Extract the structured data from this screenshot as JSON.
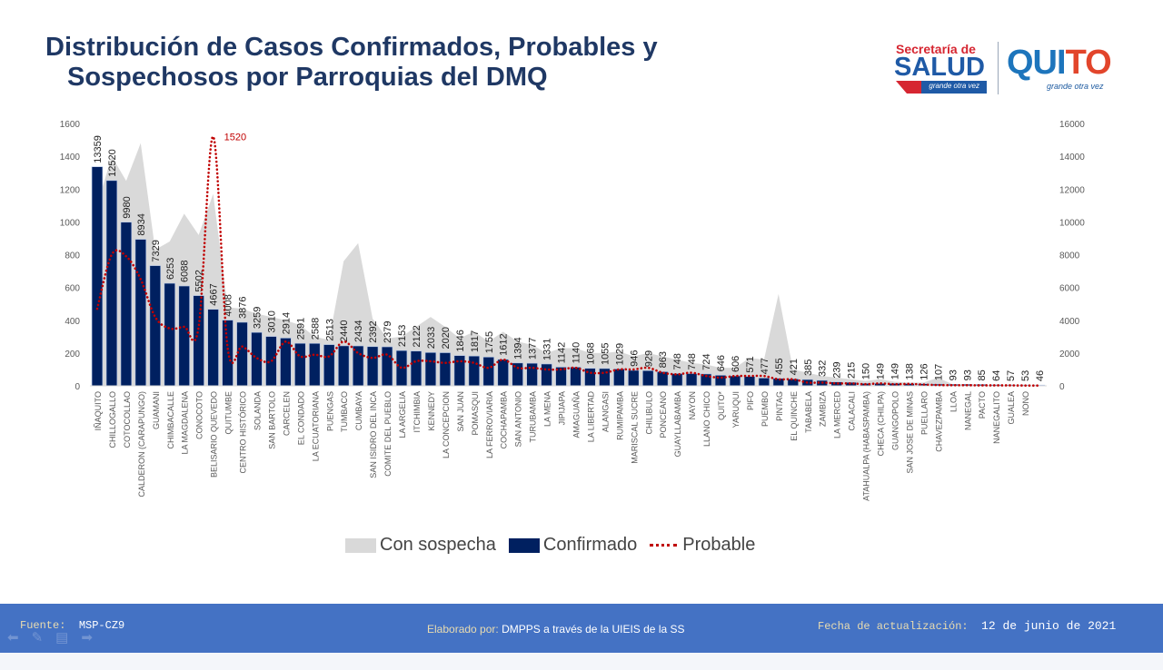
{
  "header": {
    "title_line1": "Distribución de Casos Confirmados, Probables y",
    "title_line2": "Sospechosos por Parroquias del DMQ"
  },
  "logo": {
    "secretaria": "Secretaría de",
    "salud": "SALUD",
    "salud_tagline": "grande otra vez",
    "quito": "QUI",
    "quito_o": "TO",
    "quito_tagline": "grande otra vez"
  },
  "legend": {
    "sospecha": "Con sospecha",
    "confirmado": "Confirmado",
    "probable": "Probable"
  },
  "colors": {
    "confirmado": "#002060",
    "sospecha": "#d9d9d9",
    "probable": "#c00000",
    "title": "#1f3864",
    "footer": "#4472c4"
  },
  "footer": {
    "fuente_label": "Fuente:",
    "fuente_value": "MSP-CZ9",
    "elaborado_label": "Elaborado por:",
    "elaborado_value": "DMPPS  a través de la UIEIS  de la SS",
    "fecha_label": "Fecha de actualización:",
    "fecha_value": "12 de junio de 2021"
  },
  "chart_data": {
    "type": "bar",
    "title": "Distribución de Casos Confirmados, Probables y Sospechosos por Parroquias del DMQ",
    "xlabel": "",
    "ylabel_left": "",
    "ylabel_right": "",
    "ylim_left": [
      0,
      1600
    ],
    "yticks_left": [
      0,
      200,
      400,
      600,
      800,
      1000,
      1200,
      1400,
      1600
    ],
    "ylim_right": [
      0,
      16000
    ],
    "yticks_right": [
      0,
      2000,
      4000,
      6000,
      8000,
      10000,
      12000,
      14000,
      16000
    ],
    "grid": false,
    "legend_position": "bottom",
    "probable_peak_label": "1520",
    "categories": [
      "IÑAQUITO",
      "CHILLOGALLO",
      "COTOCOLLAO",
      "CALDERON (CARAPUNGO)",
      "GUAMANI",
      "CHIMBACALLE",
      "LA MAGDALENA",
      "CONOCOTO",
      "BELISARIO QUEVEDO",
      "QUITUMBE",
      "CENTRO HISTÓRICO",
      "SOLANDA",
      "SAN BARTOLO",
      "CARCELEN",
      "EL CONDADO",
      "LA ECUATORIANA",
      "PUENGAS",
      "TUMBACO",
      "CUMBAYA",
      "SAN ISIDRO DEL INCA",
      "COMITE DEL PUEBLO",
      "LA ARGELIA",
      "ITCHIMBIA",
      "KENNEDY",
      "LA CONCEPCION",
      "SAN JUAN",
      "POMASQUI",
      "LA FERROVIARIA",
      "COCHAPAMBA",
      "SAN ANTONIO",
      "TURUBAMBA",
      "LA MENA",
      "JIPIJAPA",
      "AMAGUAÑA",
      "LA LIBERTAD",
      "ALANGASI",
      "RUMIPAMBA",
      "MARISCAL SUCRE",
      "CHILIBULO",
      "PONCEANO",
      "GUAYLLABAMBA",
      "NAYON",
      "LLANO CHICO",
      "QUITO*",
      "YARUQUI",
      "PIFO",
      "PUEMBO",
      "PINTAG",
      "EL QUINCHE",
      "TABABELA",
      "ZAMBIZA",
      "LA MERCED",
      "CALACALI",
      "ATAHUALPA (HABASPAMBA)",
      "CHECA (CHILPA)",
      "GUANGOPOLO",
      "SAN JOSE DE MINAS",
      "PUELLARO",
      "CHAVEZPAMBA",
      "LLOA",
      "NANEGAL",
      "PACTO",
      "NANEGALITO",
      "GUALEA",
      "NONO",
      ""
    ],
    "series": [
      {
        "name": "Confirmado",
        "axis": "right",
        "type": "bar",
        "values": [
          13359,
          12520,
          9980,
          8934,
          7329,
          6253,
          6088,
          5502,
          4667,
          4008,
          3876,
          3259,
          3010,
          2914,
          2591,
          2588,
          2513,
          2440,
          2434,
          2392,
          2379,
          2153,
          2122,
          2033,
          2020,
          1846,
          1817,
          1755,
          1612,
          1394,
          1377,
          1331,
          1142,
          1140,
          1068,
          1055,
          1029,
          946,
          929,
          863,
          748,
          748,
          724,
          646,
          606,
          571,
          477,
          455,
          421,
          385,
          332,
          239,
          215,
          150,
          149,
          149,
          138,
          126,
          107,
          93,
          93,
          85,
          64,
          57,
          53,
          46
        ]
      },
      {
        "name": "Con sospecha",
        "axis": "left",
        "type": "area",
        "values": [
          1100,
          1400,
          1250,
          1480,
          830,
          880,
          1050,
          920,
          1170,
          480,
          470,
          440,
          420,
          400,
          370,
          300,
          280,
          760,
          870,
          410,
          290,
          300,
          360,
          420,
          360,
          290,
          330,
          270,
          330,
          270,
          250,
          200,
          230,
          230,
          200,
          200,
          210,
          180,
          200,
          180,
          160,
          140,
          130,
          110,
          110,
          170,
          160,
          560,
          100,
          80,
          60,
          50,
          40,
          30,
          40,
          25,
          20,
          20,
          50,
          10,
          8,
          6,
          5,
          4,
          3,
          2
        ]
      },
      {
        "name": "Probable",
        "axis": "left",
        "type": "line",
        "values": [
          470,
          800,
          790,
          650,
          420,
          350,
          360,
          360,
          1520,
          230,
          240,
          170,
          150,
          270,
          180,
          190,
          180,
          270,
          200,
          170,
          190,
          110,
          150,
          150,
          140,
          150,
          140,
          110,
          160,
          110,
          110,
          100,
          100,
          110,
          80,
          80,
          100,
          100,
          110,
          80,
          70,
          80,
          60,
          50,
          60,
          60,
          60,
          40,
          40,
          20,
          20,
          15,
          15,
          10,
          15,
          10,
          12,
          8,
          5,
          4,
          4,
          3,
          3,
          3,
          2,
          2
        ]
      }
    ]
  }
}
